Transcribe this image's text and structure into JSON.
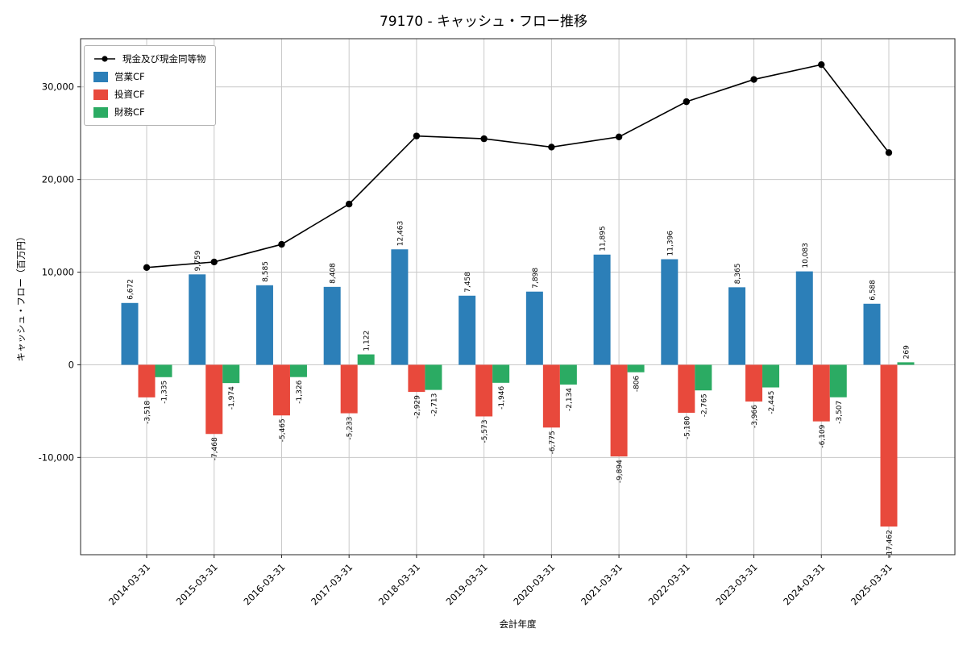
{
  "chart_data": {
    "type": "bar",
    "title": "79170 - キャッシュ・フロー推移",
    "xlabel": "会計年度",
    "ylabel": "キャッシュ・フロー（百万円）",
    "categories": [
      "2014-03-31",
      "2015-03-31",
      "2016-03-31",
      "2017-03-31",
      "2018-03-31",
      "2019-03-31",
      "2020-03-31",
      "2021-03-31",
      "2022-03-31",
      "2023-03-31",
      "2024-03-31",
      "2025-03-31"
    ],
    "series": [
      {
        "name": "営業CF",
        "color": "#2c7fb8",
        "values": [
          6672,
          9759,
          8585,
          8408,
          12463,
          7458,
          7898,
          11895,
          11396,
          8365,
          10083,
          6588
        ]
      },
      {
        "name": "投資CF",
        "color": "#e8493c",
        "values": [
          -3518,
          -7468,
          -5465,
          -5233,
          -2929,
          -5573,
          -6775,
          -9894,
          -5180,
          -3966,
          -6109,
          -17462
        ]
      },
      {
        "name": "財務CF",
        "color": "#2bab63",
        "values": [
          -1335,
          -1974,
          -1326,
          1122,
          -2713,
          -1946,
          -2134,
          -806,
          -2765,
          -2445,
          -3507,
          269
        ]
      }
    ],
    "line_series": {
      "name": "現金及び現金同等物",
      "color": "#000000",
      "values": [
        10500,
        11100,
        13000,
        17350,
        24700,
        24400,
        23500,
        24600,
        28400,
        30800,
        32400,
        22900
      ]
    },
    "y_ticks": [
      -10000,
      0,
      10000,
      20000,
      30000
    ],
    "ylim": [
      -20500,
      35200
    ],
    "grid": true,
    "legend_position": "upper-left",
    "colors": {
      "grid": "#c8c8c8",
      "spine": "#262626",
      "text": "#000000",
      "background": "#ffffff"
    }
  }
}
